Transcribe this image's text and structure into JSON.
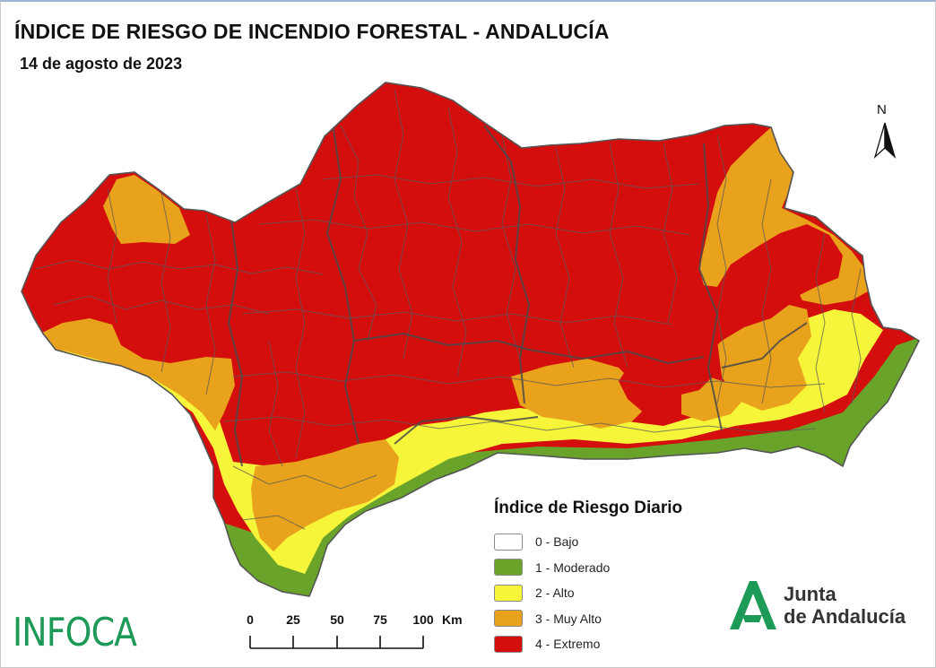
{
  "header": {
    "title": "ÍNDICE DE RIESGO DE INCENDIO FORESTAL - ANDALUCÍA",
    "date": "14 de agosto de 2023"
  },
  "north_arrow": {
    "label": "N"
  },
  "legend": {
    "title": "Índice de Riesgo Diario",
    "items": [
      {
        "label": "0 - Bajo",
        "color": "#ffffff"
      },
      {
        "label": "1 - Moderado",
        "color": "#6aa32a"
      },
      {
        "label": "2 - Alto",
        "color": "#f7f53a"
      },
      {
        "label": "3 - Muy Alto",
        "color": "#e8a21b"
      },
      {
        "label": "4 - Extremo",
        "color": "#d40d0d"
      }
    ]
  },
  "scale_bar": {
    "ticks": [
      "0",
      "25",
      "50",
      "75",
      "100"
    ],
    "unit": "Km"
  },
  "footer": {
    "infoca_logo": "INFOCA",
    "junta_logo_line1": "Junta",
    "junta_logo_line2": "de Andalucía"
  },
  "colors": {
    "extremo": "#d40d0d",
    "muy_alto": "#e8a21b",
    "alto": "#f7f53a",
    "moderado": "#6aa32a",
    "boundaries": "#5a5a5a",
    "infoca_green": "#1d9a57"
  }
}
